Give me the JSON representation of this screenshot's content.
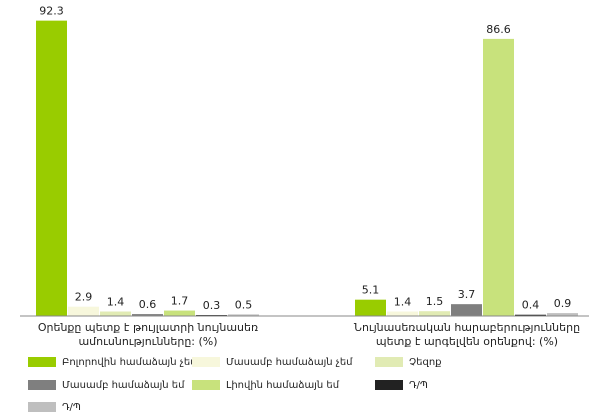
{
  "chart_data": {
    "type": "bar",
    "categories": [
      "Օրենքը պետք է թույլատրի նույնասեռ\nամուսնությունները: (%)",
      "Նույնասեռական հարաբերությունները\nպետք է արգելվեն օրենքով: (%)"
    ],
    "series": [
      {
        "name": "Բոլորովին համաձայն չեմ",
        "color": "#99cc00",
        "values": [
          92.3,
          5.1
        ]
      },
      {
        "name": "Մասամբ  համաձայն չեմ",
        "color": "#f7f7dc",
        "values": [
          2.9,
          1.4
        ]
      },
      {
        "name": "Չեզոք",
        "color": "#e1ebb4",
        "values": [
          1.4,
          1.5
        ]
      },
      {
        "name": "Մասամբ  համաձայն եմ",
        "color": "#7f7f7f",
        "values": [
          0.6,
          3.7
        ]
      },
      {
        "name": "Լիովին համաձայն եմ",
        "color": "#c8e27c",
        "values": [
          1.7,
          86.6
        ]
      },
      {
        "name": "Դ/Պ",
        "color": "#222222",
        "values": [
          0.3,
          0.4
        ]
      },
      {
        "name": "Դ/Պ",
        "color": "#bfbfbf",
        "values": [
          0.5,
          0.9
        ]
      }
    ],
    "ylim": [
      0,
      100
    ]
  }
}
